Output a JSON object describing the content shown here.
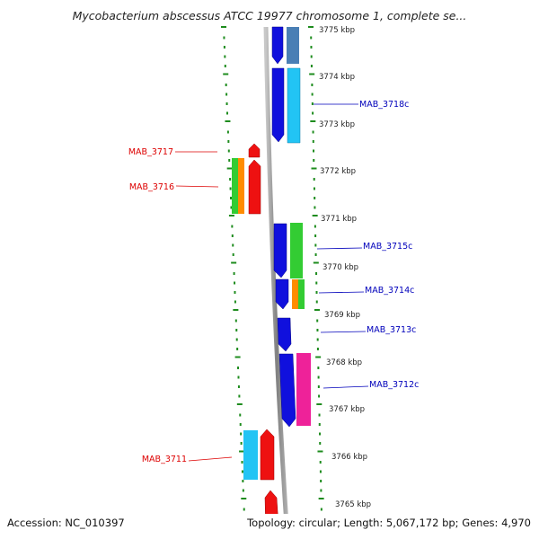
{
  "title": "Mycobacterium abscessus ATCC 19977 chromosome 1, complete se...",
  "footer": {
    "accession": "Accession: NC_010397",
    "summary": "Topology: circular; Length: 5,067,172 bp; Genes: 4,970"
  },
  "ticks": [
    {
      "label": "3775 kbp"
    },
    {
      "label": "3774 kbp"
    },
    {
      "label": "3773 kbp"
    },
    {
      "label": "3772 kbp"
    },
    {
      "label": "3771 kbp"
    },
    {
      "label": "3770 kbp"
    },
    {
      "label": "3769 kbp"
    },
    {
      "label": "3768 kbp"
    },
    {
      "label": "3767 kbp"
    },
    {
      "label": "3766 kbp"
    },
    {
      "label": "3765 kbp"
    }
  ],
  "gene_labels": [
    {
      "id": "mab3718c",
      "label": "MAB_3718c",
      "strand": "reverse"
    },
    {
      "id": "mab3717",
      "label": "MAB_3717",
      "strand": "forward"
    },
    {
      "id": "mab3716",
      "label": "MAB_3716",
      "strand": "forward"
    },
    {
      "id": "mab3715c",
      "label": "MAB_3715c",
      "strand": "reverse"
    },
    {
      "id": "mab3714c",
      "label": "MAB_3714c",
      "strand": "reverse"
    },
    {
      "id": "mab3713c",
      "label": "MAB_3713c",
      "strand": "reverse"
    },
    {
      "id": "mab3712c",
      "label": "MAB_3712c",
      "strand": "reverse"
    },
    {
      "id": "mab3711",
      "label": "MAB_3711",
      "strand": "forward"
    }
  ],
  "colors": {
    "forward_label": "#dd0000",
    "reverse_label": "#0000bb",
    "tick_green": "#1e8c1e",
    "backbone": "#8a8a8a",
    "blue": "#1010dd",
    "cyan": "#22c4f4",
    "red": "#ee1111",
    "green": "#33cc33",
    "orange": "#ff8c00",
    "pink": "#ee2299",
    "steel": "#4a7fb5"
  }
}
